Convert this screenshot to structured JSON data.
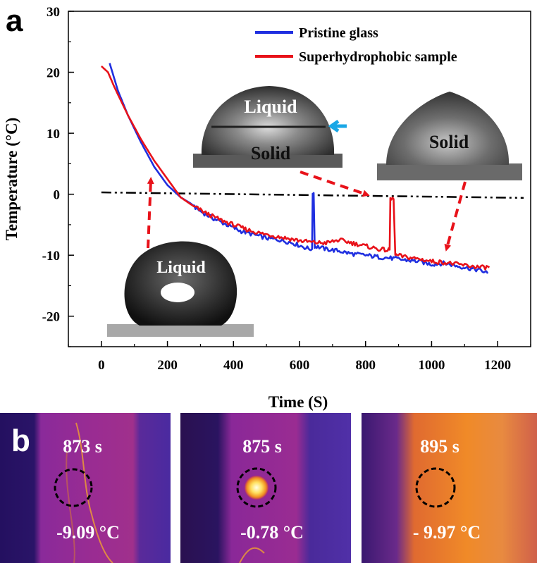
{
  "panel_a": {
    "letter": "a"
  },
  "panel_b": {
    "letter": "b",
    "frames": [
      {
        "time": "873 s",
        "temp": "-9.09 °C"
      },
      {
        "time": "875 s",
        "temp": "-0.78 °C"
      },
      {
        "time": "895 s",
        "temp": "- 9.97 °C"
      }
    ]
  },
  "insets": {
    "droplet_liquid": "Liquid",
    "freezing_liquid": "Liquid",
    "freezing_solid": "Solid",
    "frozen_solid": "Solid"
  },
  "colors": {
    "pristine": "#1f2fe0",
    "superhydrophobic": "#e8121a",
    "arrow": "#e8121a",
    "front_arrow": "#1aa7e6"
  },
  "chart_data": {
    "type": "line",
    "title": "",
    "xlabel": "Time (S)",
    "ylabel": "Temperature (°C)",
    "xlim": [
      -100,
      1300
    ],
    "ylim": [
      -25,
      30
    ],
    "xticks": [
      "0",
      "200",
      "400",
      "600",
      "800",
      "1000",
      "1200"
    ],
    "yticks": [
      "-20",
      "-10",
      "0",
      "10",
      "20",
      "30"
    ],
    "legend": {
      "position": "top-right",
      "entries": [
        "Pristine glass",
        "Superhydrophobic sample"
      ]
    },
    "reference_line": {
      "label": "",
      "x": [
        0,
        1300
      ],
      "y": [
        0.3,
        -0.6
      ]
    },
    "series": [
      {
        "name": "Pristine glass",
        "color": "#1f2fe0",
        "x": [
          25,
          50,
          80,
          120,
          160,
          200,
          240,
          270,
          300,
          340,
          380,
          420,
          460,
          500,
          540,
          580,
          620,
          638,
          640,
          643,
          646,
          648,
          680,
          720,
          760,
          800,
          840,
          880,
          920,
          960,
          1000,
          1040,
          1080,
          1120,
          1150,
          1170
        ],
        "y": [
          21.5,
          17.0,
          13.0,
          8.5,
          4.5,
          1.5,
          -0.5,
          -1.5,
          -2.8,
          -4.0,
          -5.0,
          -6.0,
          -6.6,
          -7.2,
          -7.5,
          -8.0,
          -8.8,
          -9.0,
          0.2,
          0.2,
          -8.5,
          -8.5,
          -9.0,
          -9.3,
          -9.8,
          -10.0,
          -10.3,
          -10.5,
          -10.8,
          -11.0,
          -11.5,
          -11.3,
          -11.8,
          -12.2,
          -12.5,
          -13.0
        ]
      },
      {
        "name": "Superhydrophobic sample",
        "color": "#e8121a",
        "x": [
          0,
          20,
          40,
          80,
          120,
          160,
          200,
          240,
          280,
          320,
          360,
          400,
          440,
          480,
          520,
          560,
          600,
          640,
          680,
          720,
          760,
          800,
          840,
          870,
          873,
          875,
          885,
          890,
          895,
          920,
          960,
          1000,
          1040,
          1080,
          1120,
          1150,
          1175
        ],
        "y": [
          21.0,
          20.0,
          17.5,
          13.0,
          9.0,
          5.5,
          2.5,
          -0.5,
          -2.0,
          -3.2,
          -4.2,
          -5.0,
          -5.8,
          -6.4,
          -6.8,
          -7.2,
          -7.6,
          -7.9,
          -8.0,
          -7.5,
          -8.0,
          -8.5,
          -9.0,
          -9.2,
          -9.1,
          -0.8,
          -0.8,
          -10.0,
          -10.0,
          -10.3,
          -10.6,
          -11.0,
          -11.2,
          -11.5,
          -11.8,
          -12.0,
          -12.0
        ]
      }
    ]
  }
}
